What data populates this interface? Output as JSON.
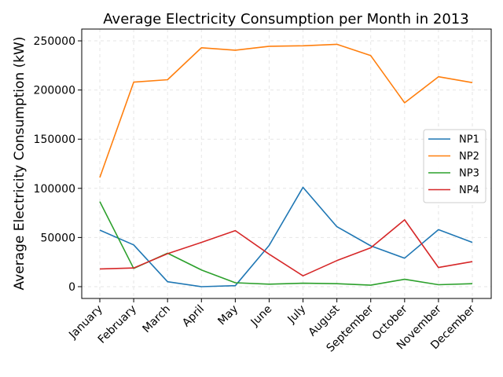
{
  "chart_data": {
    "type": "line",
    "title": "Average Electricity Consumption per Month in 2013",
    "xlabel": "",
    "ylabel": "Average Electricity Consumption (kW)",
    "categories": [
      "January",
      "February",
      "March",
      "April",
      "May",
      "June",
      "July",
      "August",
      "September",
      "October",
      "November",
      "December"
    ],
    "ylim": [
      -12000,
      262000
    ],
    "yticks": [
      0,
      50000,
      100000,
      150000,
      200000,
      250000
    ],
    "ytick_labels": [
      "0",
      "50000",
      "100000",
      "150000",
      "200000",
      "250000"
    ],
    "grid": true,
    "legend_position": "center-right",
    "series": [
      {
        "name": "NP1",
        "color": "#1f77b4",
        "values": [
          57500,
          42500,
          5000,
          0,
          1000,
          42000,
          101000,
          61000,
          41500,
          29000,
          58000,
          45000
        ]
      },
      {
        "name": "NP2",
        "color": "#ff7f0e",
        "values": [
          111000,
          208000,
          210500,
          243000,
          240500,
          244500,
          245000,
          246500,
          235000,
          187000,
          213500,
          207500
        ]
      },
      {
        "name": "NP3",
        "color": "#2ca02c",
        "values": [
          86500,
          18500,
          34000,
          17000,
          4000,
          2500,
          3500,
          3000,
          1500,
          7500,
          2000,
          3000
        ]
      },
      {
        "name": "NP4",
        "color": "#d62728",
        "values": [
          18000,
          19000,
          33500,
          45000,
          57000,
          33000,
          11000,
          26500,
          39500,
          68000,
          19500,
          25500
        ]
      }
    ]
  }
}
